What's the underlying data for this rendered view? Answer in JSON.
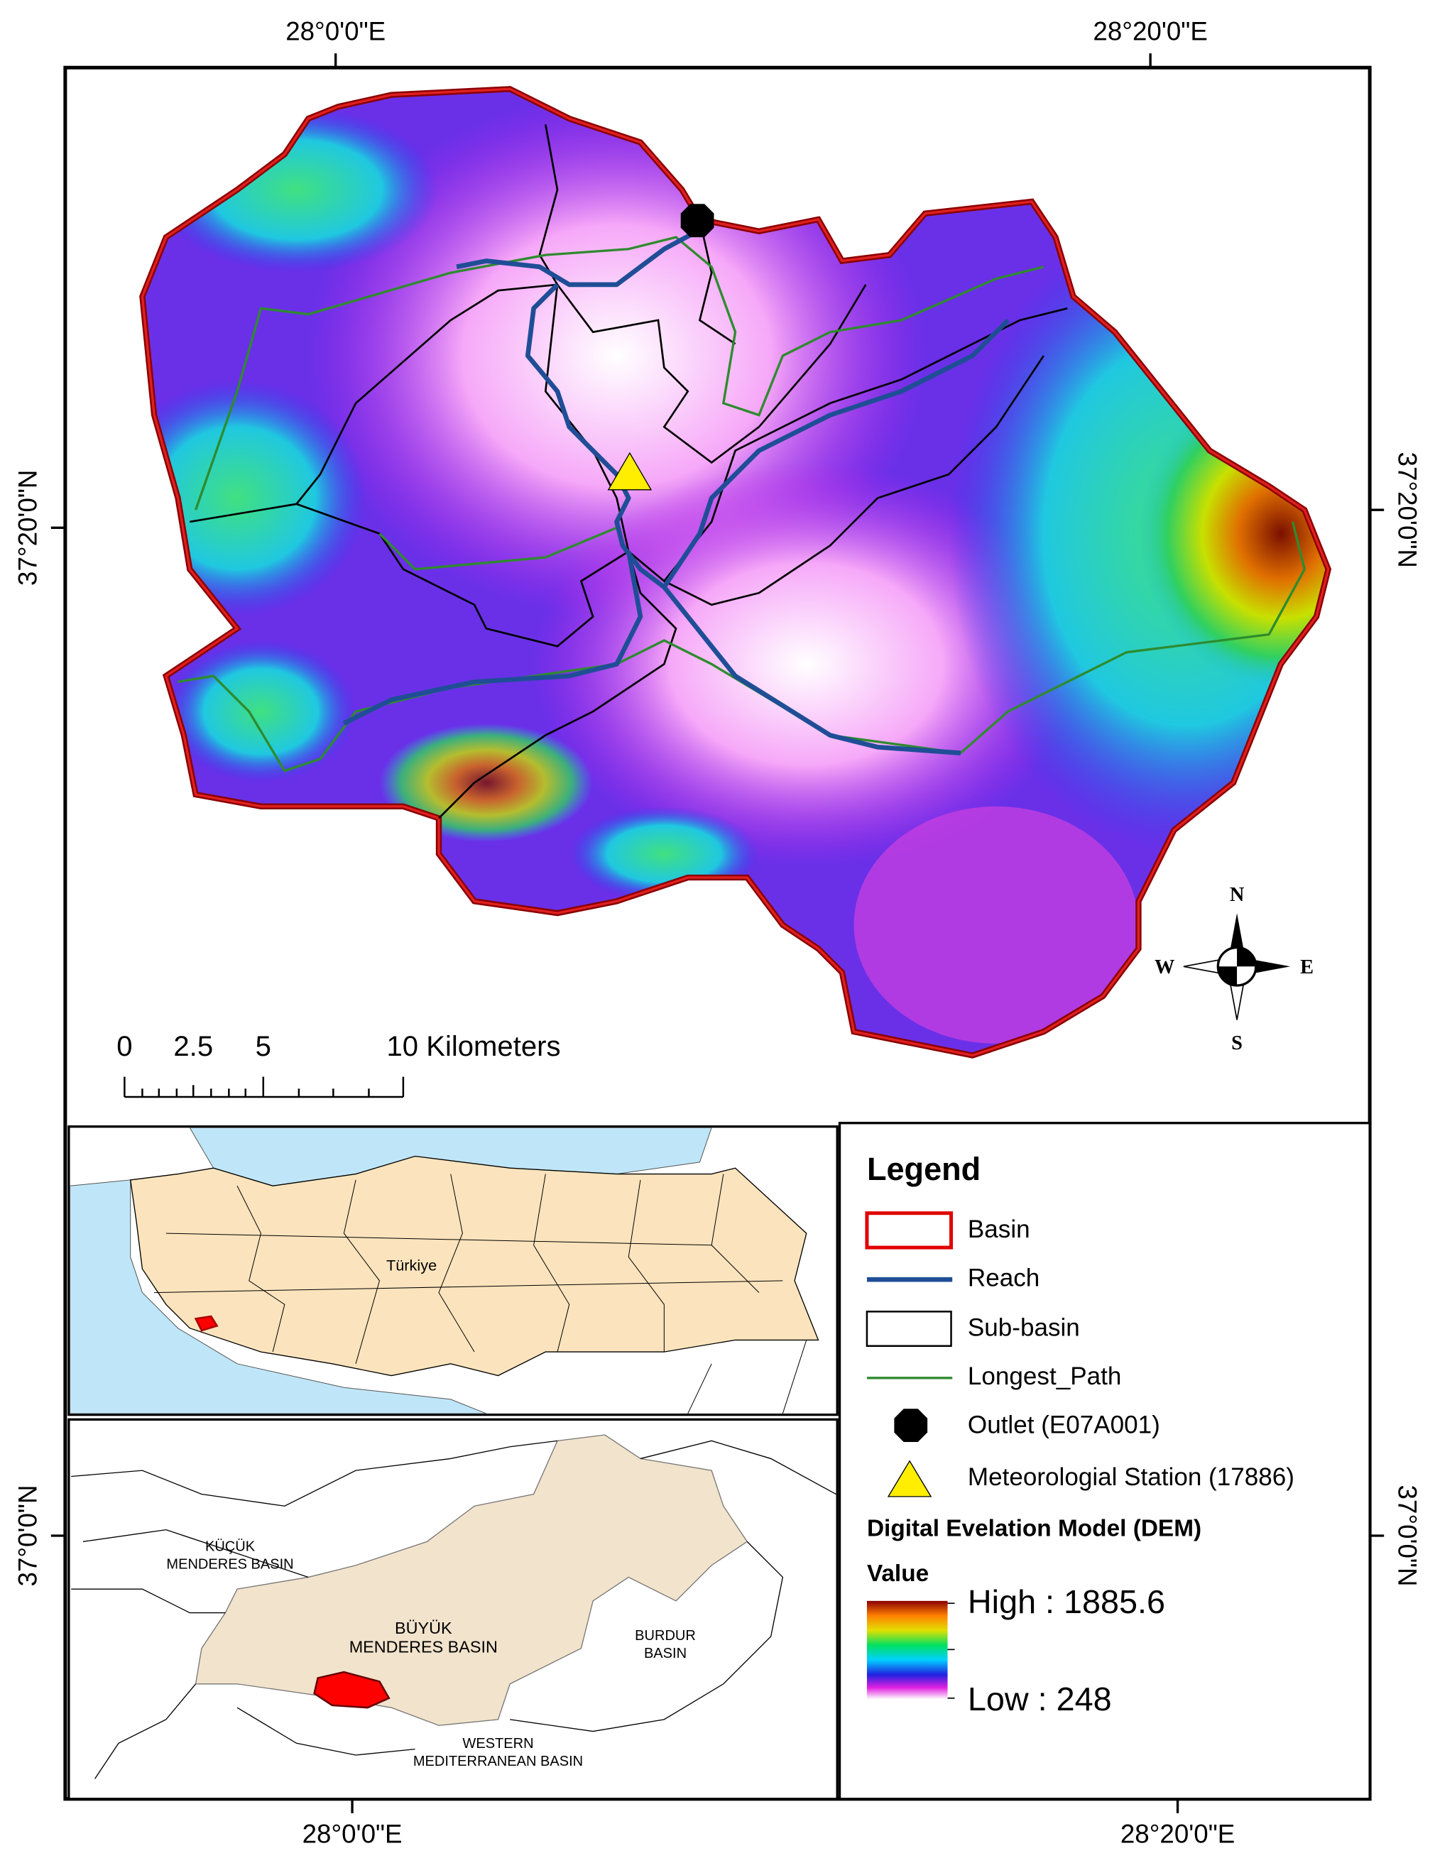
{
  "coordinates": {
    "top": [
      "28°0'0\"E",
      "28°20'0\"E"
    ],
    "bottom": [
      "28°0'0\"E",
      "28°20'0\"E"
    ],
    "left": [
      "37°20'0\"N",
      "37°0'0\"N"
    ],
    "right": [
      "37°20'0\"N",
      "37°0'0\"N"
    ]
  },
  "scale_bar": {
    "labels": [
      "0",
      "2.5",
      "5",
      "10 Kilometers"
    ]
  },
  "compass": {
    "n": "N",
    "s": "S",
    "e": "E",
    "w": "W"
  },
  "inset_overview": {
    "label": "Türkiye"
  },
  "inset_detail": {
    "labels": [
      {
        "lines": [
          "KÜÇÜK",
          "MENDERES BASIN"
        ]
      },
      {
        "lines": [
          "BÜYÜK",
          "MENDERES BASIN"
        ]
      },
      {
        "lines": [
          "BURDUR",
          "BASIN"
        ]
      },
      {
        "lines": [
          "WESTERN",
          "MEDITERRANEAN BASIN"
        ]
      }
    ]
  },
  "legend": {
    "title": "Legend",
    "items": [
      "Basin",
      "Reach",
      "Sub-basin",
      "Longest_Path",
      "Outlet (E07A001)",
      "Meteorologial Station (17886)"
    ],
    "dem_title": "Digital Evelation Model (DEM)",
    "value_title": "Value",
    "high": "High : 1885.6",
    "low": "Low : 248"
  }
}
